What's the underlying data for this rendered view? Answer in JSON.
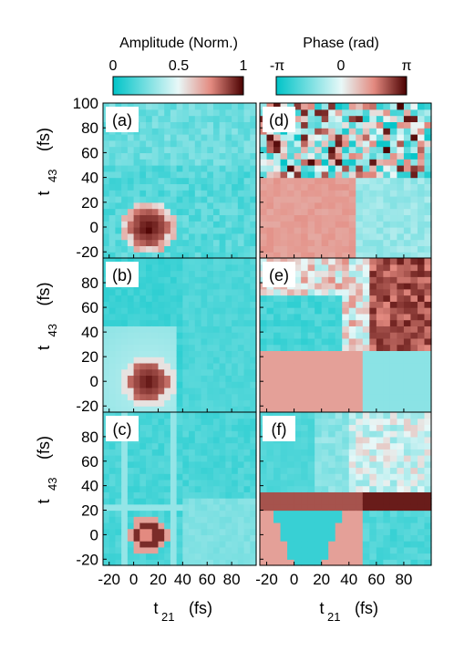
{
  "chart_data": {
    "type": "heatmap",
    "colorbars": {
      "amplitude": {
        "title": "Amplitude (Norm.)",
        "ticks": [
          "0",
          "0.5",
          "1"
        ],
        "range": [
          0,
          1
        ],
        "colors": [
          "#00c4c8",
          "#d8f4f4",
          "#e9a29a",
          "#4a0000"
        ]
      },
      "phase": {
        "title": "Phase (rad)",
        "ticks": [
          "-π",
          "0",
          "π"
        ],
        "range": [
          -3.1416,
          3.1416
        ],
        "colors": [
          "#00c4c8",
          "#d8f4f4",
          "#e9a29a",
          "#4a0000"
        ]
      }
    },
    "x_axis": {
      "label_main": "t",
      "label_sub": "21",
      "label_unit": "(fs)",
      "ticks": [
        "-20",
        "0",
        "20",
        "40",
        "60",
        "80"
      ],
      "range": [
        -25,
        100
      ]
    },
    "y_axis": {
      "label_main": "t",
      "label_sub": "43",
      "label_unit": "(fs)",
      "ticks_top": [
        "100",
        "80",
        "60",
        "40",
        "20",
        "0",
        "-20"
      ],
      "ticks": [
        "80",
        "60",
        "40",
        "20",
        "0",
        "-20"
      ],
      "range": [
        -25,
        100
      ]
    },
    "panels": [
      {
        "label": "(a)",
        "quantity": "amplitude",
        "pattern": "a"
      },
      {
        "label": "(b)",
        "quantity": "amplitude",
        "pattern": "b"
      },
      {
        "label": "(c)",
        "quantity": "amplitude",
        "pattern": "c"
      },
      {
        "label": "(d)",
        "quantity": "phase",
        "pattern": "d"
      },
      {
        "label": "(e)",
        "quantity": "phase",
        "pattern": "e"
      },
      {
        "label": "(f)",
        "quantity": "phase",
        "pattern": "f"
      }
    ]
  }
}
